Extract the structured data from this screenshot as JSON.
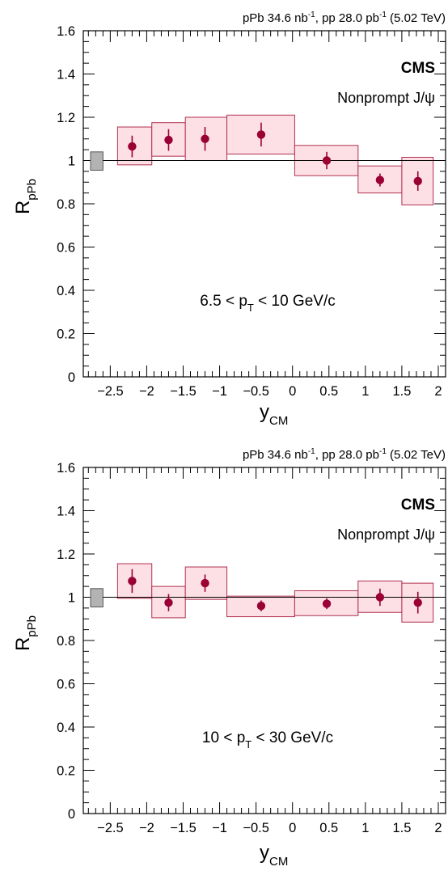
{
  "chart_data": [
    {
      "type": "scatter",
      "header": {
        "pre": "pPb 34.6 nb",
        "sup1": "-1",
        "mid": ", pp 28.0 pb",
        "sup2": "-1",
        "post": " (5.02 TeV)"
      },
      "experiment": "CMS",
      "process": "Nonprompt J/ψ",
      "pt_label": {
        "pre": "6.5 < p",
        "sub": "T",
        "post": " < 10 GeV/c"
      },
      "xlabel": {
        "main": "y",
        "sub": "CM"
      },
      "ylabel": {
        "main": "R",
        "sub": "pPb"
      },
      "xlim": [
        -2.87,
        2.1
      ],
      "ylim": [
        0,
        1.6
      ],
      "x_ticks": [
        "-2.5",
        "-2",
        "-1.5",
        "-1",
        "-0.5",
        "0",
        "0.5",
        "1",
        "1.5",
        "2"
      ],
      "x_tick_labels": [
        "−2.5",
        "−2",
        "−1.5",
        "−1",
        "−0.5",
        "0",
        "0.5",
        "1",
        "1.5",
        "2"
      ],
      "y_ticks": [
        "0",
        "0.2",
        "0.4",
        "0.6",
        "0.8",
        "1",
        "1.2",
        "1.4",
        "1.6"
      ],
      "y_tick_labels": [
        "0",
        "0.2",
        "0.4",
        "0.6",
        "0.8",
        "1",
        "1.2",
        "1.4",
        "1.6"
      ],
      "reference_line": 1,
      "global_uncertainty": {
        "x_range": [
          -2.77,
          -2.6
        ],
        "y_range": [
          0.955,
          1.04
        ]
      },
      "points": [
        {
          "x": -2.2,
          "y": 1.065,
          "stat": 0.05,
          "bin": [
            -2.4,
            -1.93
          ],
          "sys": [
            0.98,
            1.155
          ]
        },
        {
          "x": -1.7,
          "y": 1.095,
          "stat": 0.05,
          "bin": [
            -1.93,
            -1.47
          ],
          "sys": [
            1.02,
            1.175
          ]
        },
        {
          "x": -1.2,
          "y": 1.1,
          "stat": 0.055,
          "bin": [
            -1.47,
            -0.9
          ],
          "sys": [
            1.0,
            1.2
          ]
        },
        {
          "x": -0.43,
          "y": 1.12,
          "stat": 0.055,
          "bin": [
            -0.9,
            0.03
          ],
          "sys": [
            1.03,
            1.21
          ]
        },
        {
          "x": 0.47,
          "y": 1.0,
          "stat": 0.04,
          "bin": [
            0.03,
            0.9
          ],
          "sys": [
            0.93,
            1.07
          ]
        },
        {
          "x": 1.2,
          "y": 0.91,
          "stat": 0.03,
          "bin": [
            0.9,
            1.5
          ],
          "sys": [
            0.85,
            0.975
          ]
        },
        {
          "x": 1.72,
          "y": 0.905,
          "stat": 0.045,
          "bin": [
            1.5,
            1.93
          ],
          "sys": [
            0.795,
            1.015
          ]
        }
      ]
    },
    {
      "type": "scatter",
      "header": {
        "pre": "pPb 34.6 nb",
        "sup1": "-1",
        "mid": ", pp 28.0 pb",
        "sup2": "-1",
        "post": " (5.02 TeV)"
      },
      "experiment": "CMS",
      "process": "Nonprompt J/ψ",
      "pt_label": {
        "pre": "10 < p",
        "sub": "T",
        "post": " < 30 GeV/c"
      },
      "xlabel": {
        "main": "y",
        "sub": "CM"
      },
      "ylabel": {
        "main": "R",
        "sub": "pPb"
      },
      "xlim": [
        -2.87,
        2.1
      ],
      "ylim": [
        0,
        1.6
      ],
      "x_ticks": [
        "-2.5",
        "-2",
        "-1.5",
        "-1",
        "-0.5",
        "0",
        "0.5",
        "1",
        "1.5",
        "2"
      ],
      "x_tick_labels": [
        "−2.5",
        "−2",
        "−1.5",
        "−1",
        "−0.5",
        "0",
        "0.5",
        "1",
        "1.5",
        "2"
      ],
      "y_ticks": [
        "0",
        "0.2",
        "0.4",
        "0.6",
        "0.8",
        "1",
        "1.2",
        "1.4",
        "1.6"
      ],
      "y_tick_labels": [
        "0",
        "0.2",
        "0.4",
        "0.6",
        "0.8",
        "1",
        "1.2",
        "1.4",
        "1.6"
      ],
      "reference_line": 1,
      "global_uncertainty": {
        "x_range": [
          -2.77,
          -2.6
        ],
        "y_range": [
          0.955,
          1.04
        ]
      },
      "points": [
        {
          "x": -2.2,
          "y": 1.075,
          "stat": 0.055,
          "bin": [
            -2.4,
            -1.93
          ],
          "sys": [
            0.995,
            1.155
          ]
        },
        {
          "x": -1.7,
          "y": 0.975,
          "stat": 0.04,
          "bin": [
            -1.93,
            -1.47
          ],
          "sys": [
            0.905,
            1.05
          ]
        },
        {
          "x": -1.2,
          "y": 1.065,
          "stat": 0.04,
          "bin": [
            -1.47,
            -0.9
          ],
          "sys": [
            0.99,
            1.14
          ]
        },
        {
          "x": -0.43,
          "y": 0.96,
          "stat": 0.025,
          "bin": [
            -0.9,
            0.03
          ],
          "sys": [
            0.91,
            1.005
          ]
        },
        {
          "x": 0.47,
          "y": 0.97,
          "stat": 0.025,
          "bin": [
            0.03,
            0.9
          ],
          "sys": [
            0.915,
            1.03
          ]
        },
        {
          "x": 1.2,
          "y": 1.0,
          "stat": 0.04,
          "bin": [
            0.9,
            1.5
          ],
          "sys": [
            0.93,
            1.075
          ]
        },
        {
          "x": 1.72,
          "y": 0.975,
          "stat": 0.05,
          "bin": [
            1.5,
            1.93
          ],
          "sys": [
            0.885,
            1.065
          ]
        }
      ]
    }
  ],
  "colors": {
    "marker": "#990033",
    "box_fill": "#fde0e6",
    "box_stroke": "#b0304f",
    "global_fill": "#b3b3b3",
    "global_stroke": "#555555"
  }
}
